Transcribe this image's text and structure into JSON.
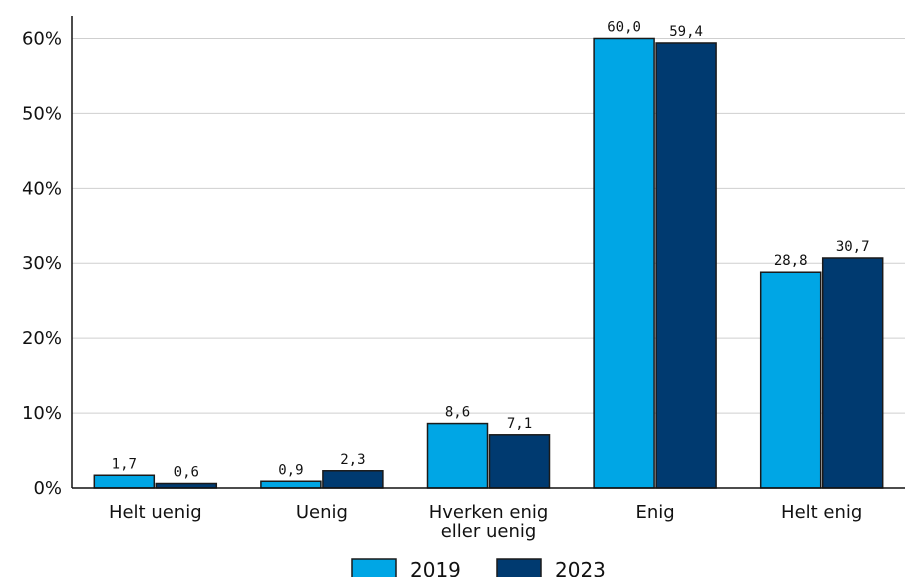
{
  "chart_data": {
    "type": "bar",
    "categories": [
      [
        "Helt uenig"
      ],
      [
        "Uenig"
      ],
      [
        "Hverken enig",
        "eller uenig"
      ],
      [
        "Enig"
      ],
      [
        "Helt enig"
      ]
    ],
    "series": [
      {
        "name": "2019",
        "color": "#00a6e5",
        "values": [
          1.7,
          0.9,
          8.6,
          60.0,
          28.8
        ],
        "labels": [
          "1,7",
          "0,9",
          "8,6",
          "60,0",
          "28,8"
        ]
      },
      {
        "name": "2023",
        "color": "#003a70",
        "values": [
          0.6,
          2.3,
          7.1,
          59.4,
          30.7
        ],
        "labels": [
          "0,6",
          "2,3",
          "7,1",
          "59,4",
          "30,7"
        ]
      }
    ],
    "yticks": [
      0,
      10,
      20,
      30,
      40,
      50,
      60
    ],
    "ytick_labels": [
      "0%",
      "10%",
      "20%",
      "30%",
      "40%",
      "50%",
      "60%"
    ],
    "ylim": [
      0,
      63
    ],
    "grid": true,
    "legend": "bottom-center"
  }
}
